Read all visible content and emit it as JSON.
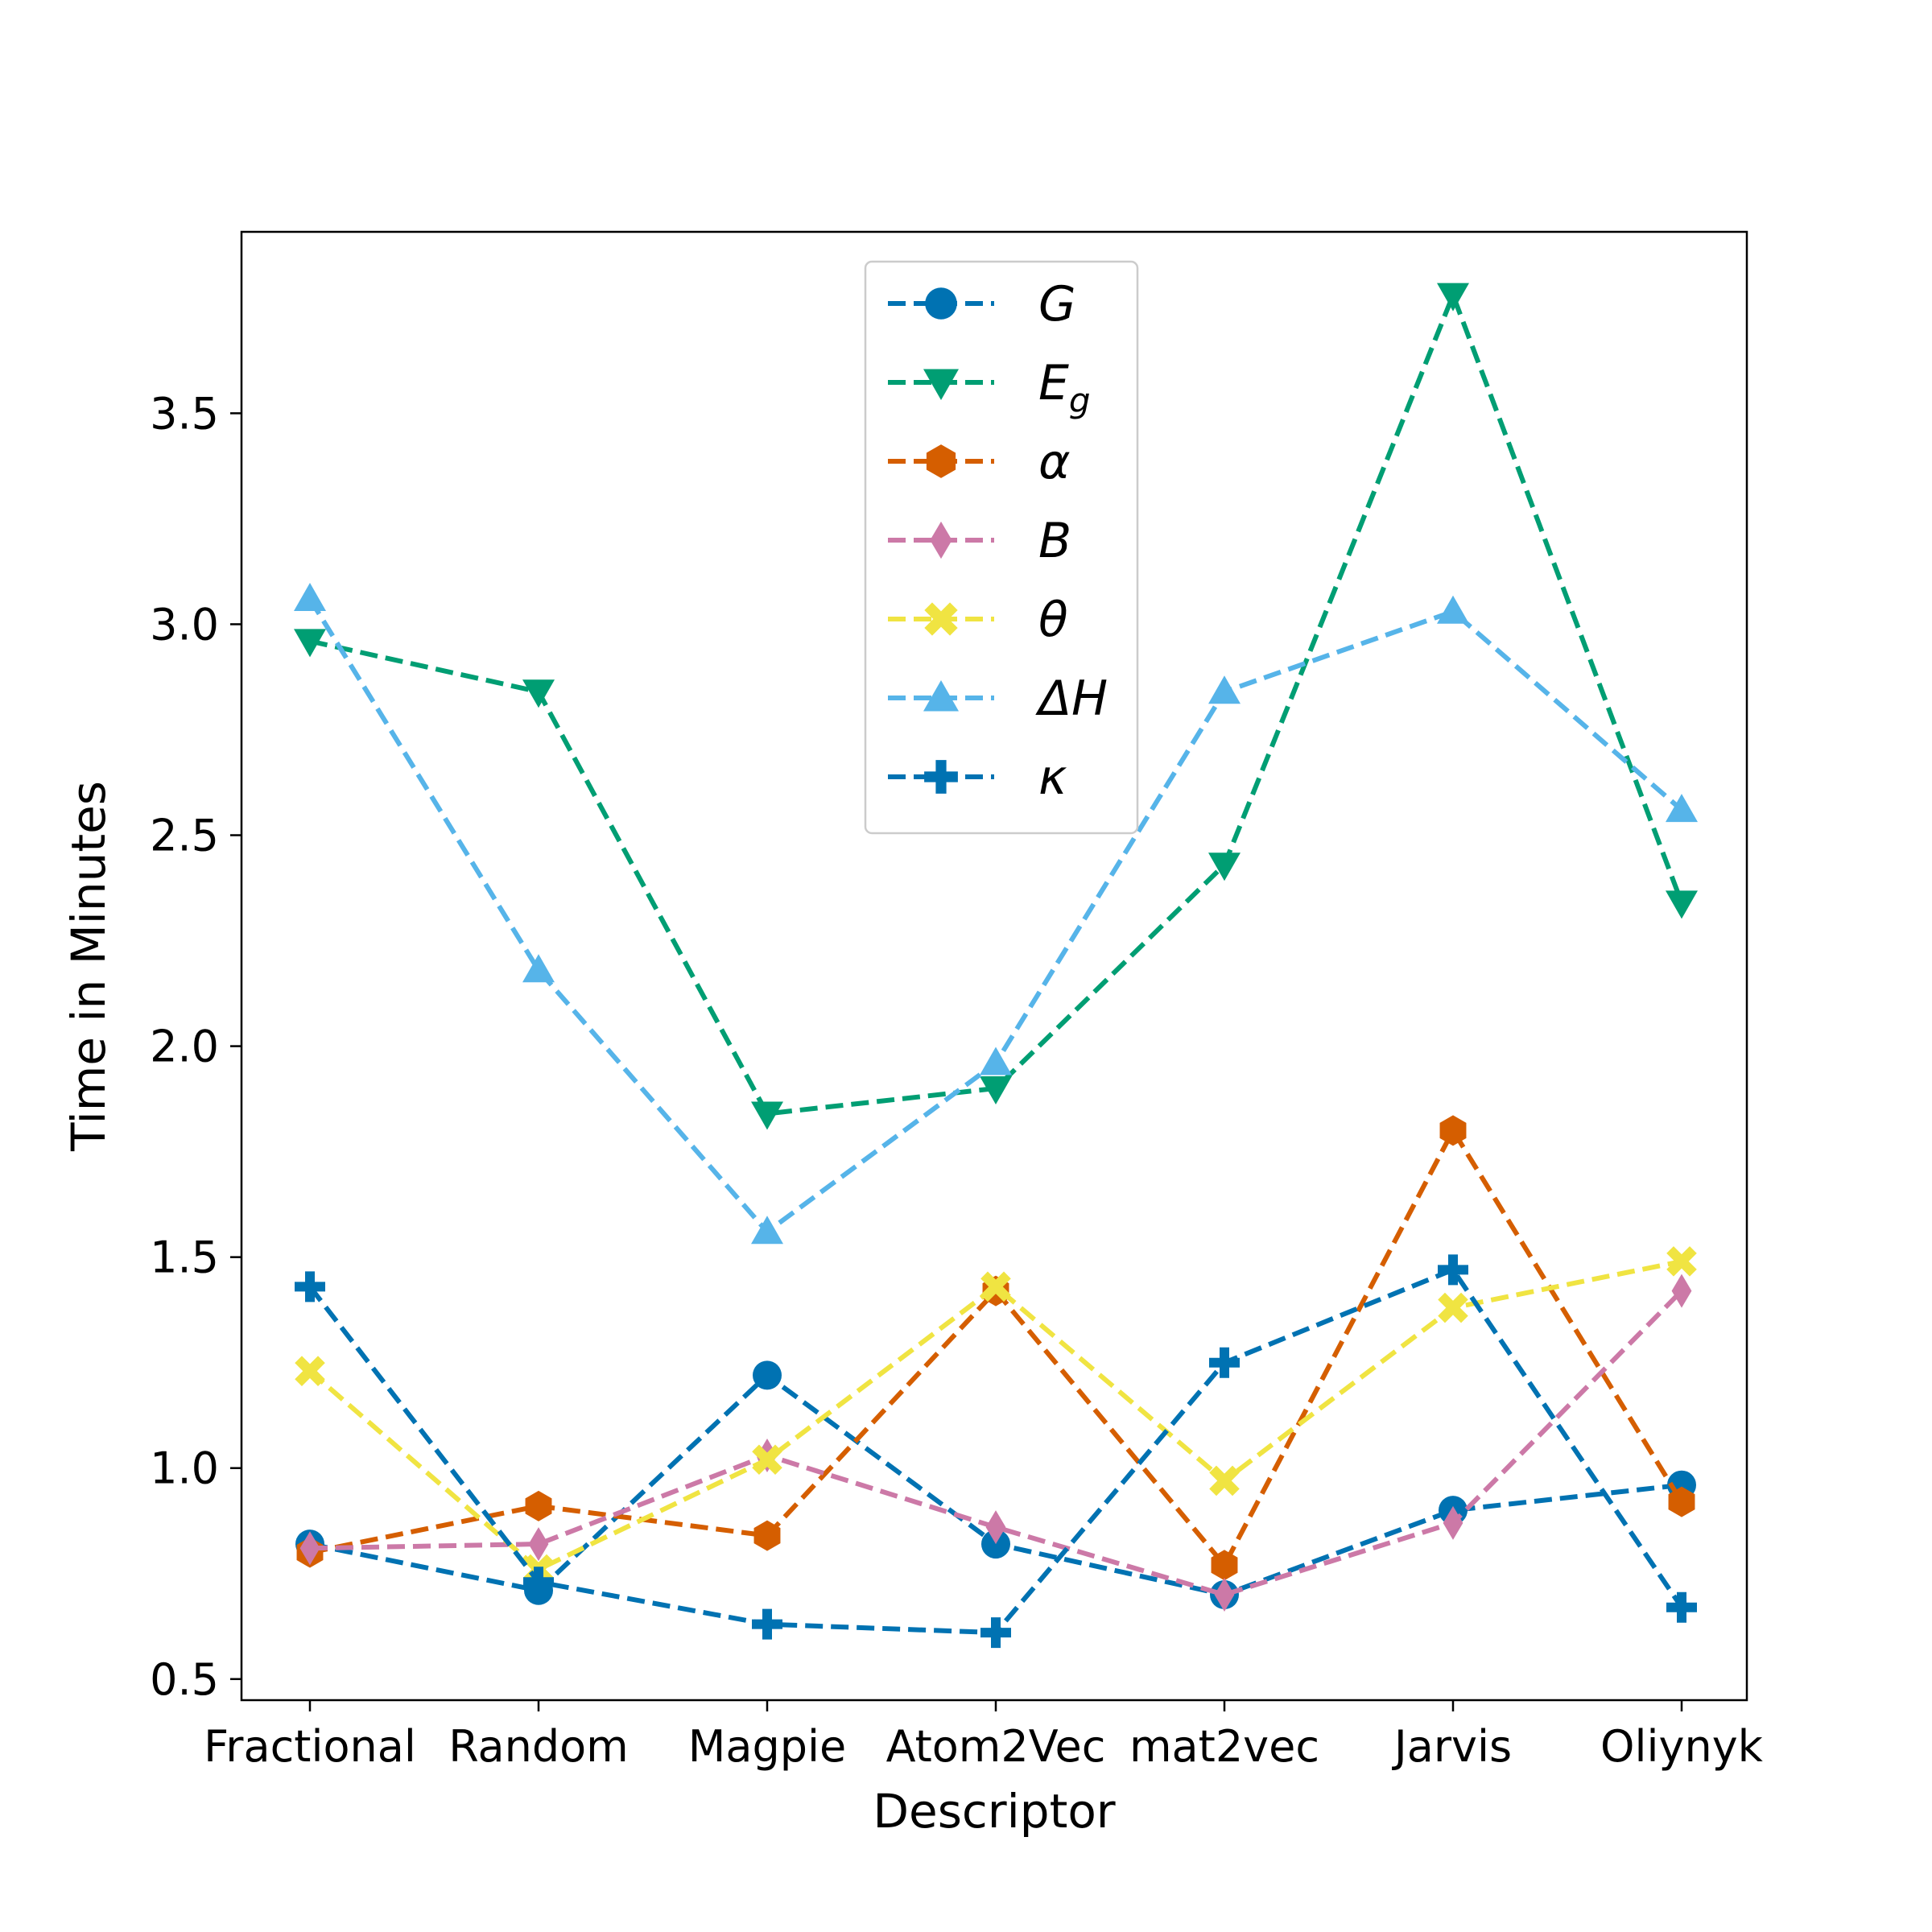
{
  "chart_data": {
    "type": "line",
    "title": "",
    "xlabel": "Descriptor",
    "ylabel": "Time in Minutes",
    "categories": [
      "Fractional",
      "Random",
      "Magpie",
      "Atom2Vec",
      "mat2vec",
      "Jarvis",
      "Oliynyk"
    ],
    "ylim": [
      0.45,
      3.93
    ],
    "yticks": [
      "0.5",
      "1.0",
      "1.5",
      "2.0",
      "2.5",
      "3.0",
      "3.5"
    ],
    "grid": false,
    "legend_position": "top-center",
    "series": [
      {
        "name": "G",
        "sub": "",
        "marker": "circle",
        "color": "#0072B2",
        "values": [
          0.82,
          0.71,
          1.22,
          0.82,
          0.7,
          0.9,
          0.96
        ]
      },
      {
        "name": "E",
        "sub": "g",
        "marker": "triangle-down",
        "color": "#009E73",
        "values": [
          2.96,
          2.84,
          1.84,
          1.9,
          2.43,
          3.78,
          2.34
        ]
      },
      {
        "name": "α",
        "sub": "",
        "marker": "hexagon",
        "color": "#D55E00",
        "values": [
          0.8,
          0.91,
          0.84,
          1.42,
          0.77,
          1.8,
          0.92
        ]
      },
      {
        "name": "B",
        "sub": "",
        "marker": "diamond",
        "color": "#CC79A7",
        "values": [
          0.81,
          0.82,
          1.03,
          0.86,
          0.7,
          0.87,
          1.42
        ]
      },
      {
        "name": "θ",
        "sub": "",
        "marker": "x-filled",
        "color": "#F0E442",
        "values": [
          1.23,
          0.76,
          1.02,
          1.43,
          0.97,
          1.38,
          1.49
        ]
      },
      {
        "name": "ΔH",
        "sub": "",
        "marker": "triangle-up",
        "color": "#56B4E9",
        "values": [
          3.06,
          2.18,
          1.56,
          1.96,
          2.84,
          3.03,
          2.56
        ]
      },
      {
        "name": "κ",
        "sub": "",
        "marker": "plus-filled",
        "color": "#0072B2",
        "values": [
          1.43,
          0.73,
          0.63,
          0.61,
          1.25,
          1.47,
          0.67
        ]
      }
    ]
  }
}
